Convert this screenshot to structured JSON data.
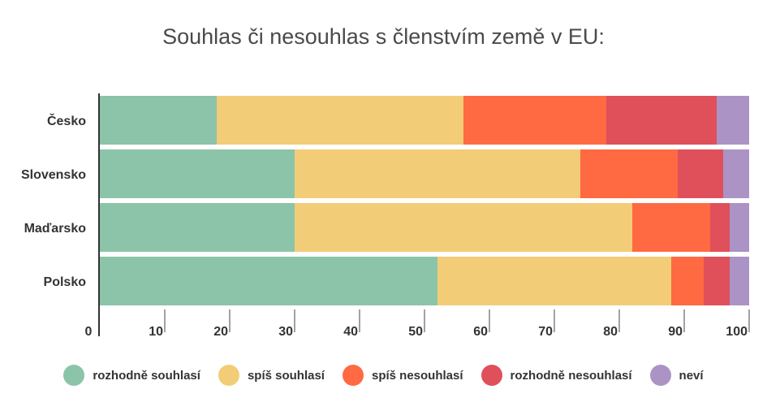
{
  "chart_data": {
    "type": "bar",
    "orientation": "horizontal",
    "stacked": true,
    "title": "Souhlas či nesouhlas s členstvím země v EU:",
    "categories": [
      "Česko",
      "Slovensko",
      "Maďarsko",
      "Polsko"
    ],
    "series": [
      {
        "name": "rozhodně souhlasí",
        "color": "#8bc4a8",
        "values": [
          18,
          30,
          30,
          52
        ]
      },
      {
        "name": "spíš souhlasí",
        "color": "#f3cc78",
        "values": [
          38,
          44,
          52,
          36
        ]
      },
      {
        "name": "spíš nesouhlasí",
        "color": "#ff6a42",
        "values": [
          22,
          15,
          12,
          5
        ]
      },
      {
        "name": "rozhodně nesouhlasí",
        "color": "#e0505a",
        "values": [
          17,
          7,
          3,
          4
        ]
      },
      {
        "name": "neví",
        "color": "#ab93c5",
        "values": [
          5,
          4,
          3,
          3
        ]
      }
    ],
    "xlim": [
      0,
      100
    ],
    "xticks": [
      "0",
      "10",
      "20",
      "30",
      "40",
      "50",
      "60",
      "70",
      "80",
      "90",
      "100"
    ],
    "grid": false,
    "legend_position": "bottom"
  }
}
